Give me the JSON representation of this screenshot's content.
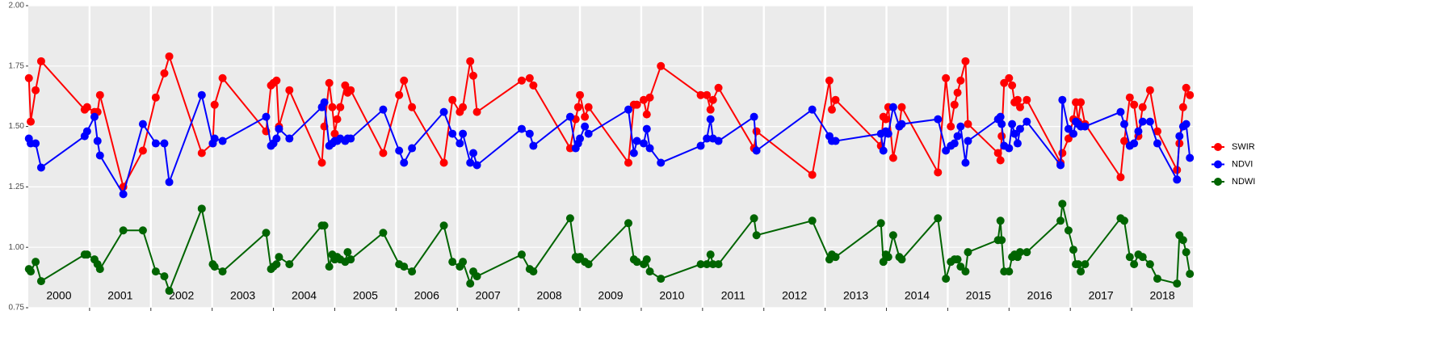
{
  "chart_data": {
    "type": "line",
    "x": [
      2000.01,
      2000.04,
      2000.12,
      2000.21,
      2000.92,
      2000.96,
      2001.08,
      2001.13,
      2001.17,
      2001.55,
      2001.87,
      2002.08,
      2002.22,
      2002.3,
      2002.83,
      2003.01,
      2003.04,
      2003.17,
      2003.88,
      2003.96,
      2004.0,
      2004.05,
      2004.09,
      2004.26,
      2004.79,
      2004.83,
      2004.91,
      2004.96,
      2005.0,
      2005.04,
      2005.09,
      2005.17,
      2005.21,
      2005.26,
      2005.79,
      2006.05,
      2006.13,
      2006.26,
      2006.78,
      2006.92,
      2007.04,
      2007.09,
      2007.21,
      2007.26,
      2007.32,
      2008.05,
      2008.18,
      2008.24,
      2008.84,
      2008.93,
      2008.97,
      2009.0,
      2009.08,
      2009.14,
      2009.79,
      2009.88,
      2009.93,
      2010.04,
      2010.09,
      2010.14,
      2010.32,
      2010.97,
      2011.07,
      2011.13,
      2011.17,
      2011.26,
      2011.84,
      2011.88,
      2012.79,
      2013.07,
      2013.11,
      2013.17,
      2013.91,
      2013.95,
      2013.99,
      2014.03,
      2014.11,
      2014.21,
      2014.25,
      2014.84,
      2014.97,
      2015.05,
      2015.11,
      2015.16,
      2015.21,
      2015.29,
      2015.33,
      2015.82,
      2015.86,
      2015.88,
      2015.92,
      2016.0,
      2016.05,
      2016.09,
      2016.14,
      2016.18,
      2016.29,
      2016.84,
      2016.87,
      2016.97,
      2017.05,
      2017.09,
      2017.13,
      2017.17,
      2017.24,
      2017.82,
      2017.88,
      2017.97,
      2018.04,
      2018.11,
      2018.18,
      2018.3,
      2018.42,
      2018.74,
      2018.78,
      2018.84,
      2018.89,
      2018.95
    ],
    "series": [
      {
        "name": "SWIR",
        "color": "#ff0000",
        "values": [
          1.7,
          1.52,
          1.65,
          1.77,
          1.57,
          1.58,
          1.56,
          1.56,
          1.63,
          1.25,
          1.4,
          1.62,
          1.72,
          1.79,
          1.39,
          1.43,
          1.59,
          1.7,
          1.48,
          1.67,
          1.68,
          1.69,
          1.5,
          1.65,
          1.35,
          1.5,
          1.68,
          1.58,
          1.47,
          1.53,
          1.58,
          1.67,
          1.64,
          1.65,
          1.39,
          1.63,
          1.69,
          1.58,
          1.35,
          1.61,
          1.56,
          1.58,
          1.77,
          1.71,
          1.56,
          1.69,
          1.7,
          1.67,
          1.41,
          1.53,
          1.58,
          1.63,
          1.54,
          1.58,
          1.35,
          1.59,
          1.59,
          1.61,
          1.55,
          1.62,
          1.75,
          1.63,
          1.63,
          1.57,
          1.61,
          1.66,
          1.41,
          1.48,
          1.3,
          1.69,
          1.57,
          1.61,
          1.42,
          1.54,
          1.53,
          1.58,
          1.37,
          1.5,
          1.58,
          1.31,
          1.7,
          1.5,
          1.59,
          1.64,
          1.69,
          1.77,
          1.51,
          1.39,
          1.36,
          1.46,
          1.68,
          1.7,
          1.67,
          1.6,
          1.61,
          1.58,
          1.61,
          1.35,
          1.39,
          1.45,
          1.53,
          1.6,
          1.52,
          1.6,
          1.51,
          1.29,
          1.44,
          1.62,
          1.59,
          1.46,
          1.58,
          1.65,
          1.48,
          1.32,
          1.43,
          1.58,
          1.66,
          1.63
        ]
      },
      {
        "name": "NDVI",
        "color": "#0000ff",
        "values": [
          1.45,
          1.43,
          1.43,
          1.33,
          1.46,
          1.48,
          1.54,
          1.44,
          1.38,
          1.22,
          1.51,
          1.43,
          1.43,
          1.27,
          1.63,
          1.43,
          1.45,
          1.44,
          1.54,
          1.42,
          1.43,
          1.45,
          1.49,
          1.45,
          1.58,
          1.6,
          1.42,
          1.43,
          1.44,
          1.44,
          1.45,
          1.44,
          1.45,
          1.45,
          1.57,
          1.4,
          1.35,
          1.41,
          1.56,
          1.47,
          1.43,
          1.47,
          1.35,
          1.39,
          1.34,
          1.49,
          1.47,
          1.42,
          1.54,
          1.41,
          1.43,
          1.45,
          1.5,
          1.47,
          1.57,
          1.39,
          1.44,
          1.43,
          1.49,
          1.41,
          1.35,
          1.42,
          1.45,
          1.53,
          1.45,
          1.44,
          1.54,
          1.4,
          1.57,
          1.46,
          1.44,
          1.44,
          1.47,
          1.4,
          1.48,
          1.47,
          1.58,
          1.5,
          1.51,
          1.53,
          1.4,
          1.42,
          1.43,
          1.46,
          1.5,
          1.35,
          1.44,
          1.53,
          1.54,
          1.51,
          1.42,
          1.41,
          1.51,
          1.47,
          1.43,
          1.49,
          1.52,
          1.34,
          1.61,
          1.49,
          1.47,
          1.52,
          1.51,
          1.5,
          1.5,
          1.56,
          1.51,
          1.42,
          1.43,
          1.48,
          1.52,
          1.52,
          1.43,
          1.28,
          1.46,
          1.5,
          1.51,
          1.37
        ]
      },
      {
        "name": "NDWI",
        "color": "#006400",
        "values": [
          0.91,
          0.9,
          0.94,
          0.86,
          0.97,
          0.97,
          0.95,
          0.93,
          0.91,
          1.07,
          1.07,
          0.9,
          0.88,
          0.82,
          1.16,
          0.93,
          0.92,
          0.9,
          1.06,
          0.91,
          0.92,
          0.93,
          0.96,
          0.93,
          1.09,
          1.09,
          0.92,
          0.97,
          0.95,
          0.96,
          0.95,
          0.94,
          0.98,
          0.95,
          1.06,
          0.93,
          0.92,
          0.9,
          1.09,
          0.94,
          0.92,
          0.94,
          0.85,
          0.9,
          0.88,
          0.97,
          0.91,
          0.9,
          1.12,
          0.96,
          0.95,
          0.96,
          0.94,
          0.93,
          1.1,
          0.95,
          0.94,
          0.93,
          0.95,
          0.9,
          0.87,
          0.93,
          0.93,
          0.97,
          0.93,
          0.93,
          1.12,
          1.05,
          1.11,
          0.95,
          0.97,
          0.96,
          1.1,
          0.94,
          0.97,
          0.96,
          1.05,
          0.96,
          0.95,
          1.12,
          0.87,
          0.94,
          0.95,
          0.95,
          0.92,
          0.9,
          0.98,
          1.03,
          1.11,
          1.03,
          0.9,
          0.9,
          0.96,
          0.97,
          0.96,
          0.98,
          0.98,
          1.11,
          1.18,
          1.07,
          0.99,
          0.93,
          0.93,
          0.9,
          0.93,
          1.12,
          1.11,
          0.96,
          0.93,
          0.97,
          0.96,
          0.93,
          0.87,
          0.85,
          1.05,
          1.03,
          0.98,
          0.89
        ]
      }
    ],
    "xlim": [
      2000,
      2019
    ],
    "xticks": [
      2001,
      2002,
      2003,
      2004,
      2005,
      2006,
      2007,
      2008,
      2009,
      2010,
      2011,
      2012,
      2013,
      2014,
      2015,
      2016,
      2017,
      2018
    ],
    "year_labels": [
      2000,
      2001,
      2002,
      2003,
      2004,
      2005,
      2006,
      2007,
      2008,
      2009,
      2010,
      2011,
      2012,
      2013,
      2014,
      2015,
      2016,
      2017,
      2018
    ],
    "ylim": [
      0.75,
      2.0
    ],
    "yticks": [
      {
        "value": 0.75,
        "label": "0.75"
      },
      {
        "value": 1.0,
        "label": "1.00"
      },
      {
        "value": 1.25,
        "label": "1.25"
      },
      {
        "value": 1.5,
        "label": "1.50"
      },
      {
        "value": 1.75,
        "label": "1.75"
      },
      {
        "value": 2.0,
        "label": "2.00"
      }
    ],
    "grid": true,
    "legend": "right"
  }
}
